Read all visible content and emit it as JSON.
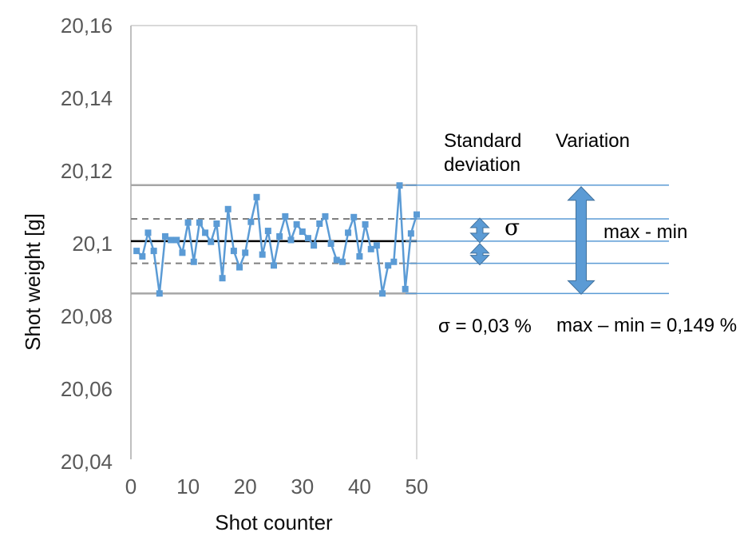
{
  "colors": {
    "series": "#5b9bd5",
    "annotation": "#5b9bd5",
    "arrow_border": "#41719c",
    "minmax_line": "#a6a6a6",
    "sigma_line": "#7f7f7f",
    "mean_line": "#000000",
    "tick_text": "#595959",
    "plot_border": "#d9d9d9",
    "axis_line": "#bfbfbf"
  },
  "annotations": {
    "standard_deviation": "Standard deviation",
    "variation": "Variation",
    "sigma_symbol": "σ",
    "max_min_label": "max - min",
    "sigma_value": "σ = 0,03 %",
    "max_min_value": "max – min = 0,149 %"
  },
  "chart_data": {
    "type": "line",
    "title": "",
    "xlabel": "Shot counter",
    "ylabel": "Shot weight [g]",
    "xlim": [
      0,
      50
    ],
    "ylim": [
      20.04,
      20.16
    ],
    "grid": false,
    "legend": false,
    "x_ticks": {
      "values": [
        0,
        10,
        20,
        30,
        40,
        50
      ],
      "labels": [
        "0",
        "10",
        "20",
        "30",
        "40",
        "50"
      ]
    },
    "y_ticks": {
      "values": [
        20.16,
        20.14,
        20.12,
        20.1,
        20.08,
        20.06,
        20.04
      ],
      "labels": [
        "20,16",
        "20,14",
        "20,12",
        "20,1",
        "20,08",
        "20,06",
        "20,04"
      ]
    },
    "series": [
      {
        "name": "Shot weight",
        "marker": "square",
        "x": [
          1,
          2,
          3,
          4,
          5,
          6,
          7,
          8,
          9,
          10,
          11,
          12,
          13,
          14,
          15,
          16,
          17,
          18,
          19,
          20,
          21,
          22,
          23,
          24,
          25,
          26,
          27,
          28,
          29,
          30,
          31,
          32,
          33,
          34,
          35,
          36,
          37,
          38,
          39,
          40,
          41,
          42,
          43,
          44,
          45,
          46,
          47,
          48,
          49,
          50
        ],
        "values": [
          20.098,
          20.0965,
          20.103,
          20.098,
          20.0863,
          20.102,
          20.101,
          20.101,
          20.0975,
          20.1058,
          20.095,
          20.1058,
          20.103,
          20.1005,
          20.1055,
          20.0905,
          20.1095,
          20.098,
          20.0935,
          20.0975,
          20.106,
          20.1128,
          20.097,
          20.1035,
          20.094,
          20.102,
          20.1075,
          20.101,
          20.1053,
          20.1033,
          20.1015,
          20.0995,
          20.1055,
          20.1075,
          20.1,
          20.0955,
          20.095,
          20.103,
          20.1073,
          20.0965,
          20.1053,
          20.0985,
          20.0995,
          20.0863,
          20.094,
          20.095,
          20.116,
          20.0875,
          20.1028,
          20.108
        ]
      }
    ],
    "ref_lines": [
      {
        "name": "max",
        "value": 20.1161,
        "style": "solid-gray"
      },
      {
        "name": "plus-sigma",
        "value": 20.1068,
        "style": "dashed-gray"
      },
      {
        "name": "mean",
        "value": 20.1007,
        "style": "solid-black"
      },
      {
        "name": "minus-sigma",
        "value": 20.0946,
        "style": "dashed-gray"
      },
      {
        "name": "min",
        "value": 20.0863,
        "style": "solid-gray"
      }
    ],
    "stats": {
      "sigma_percent": "0,03",
      "range_percent": "0,149"
    }
  }
}
